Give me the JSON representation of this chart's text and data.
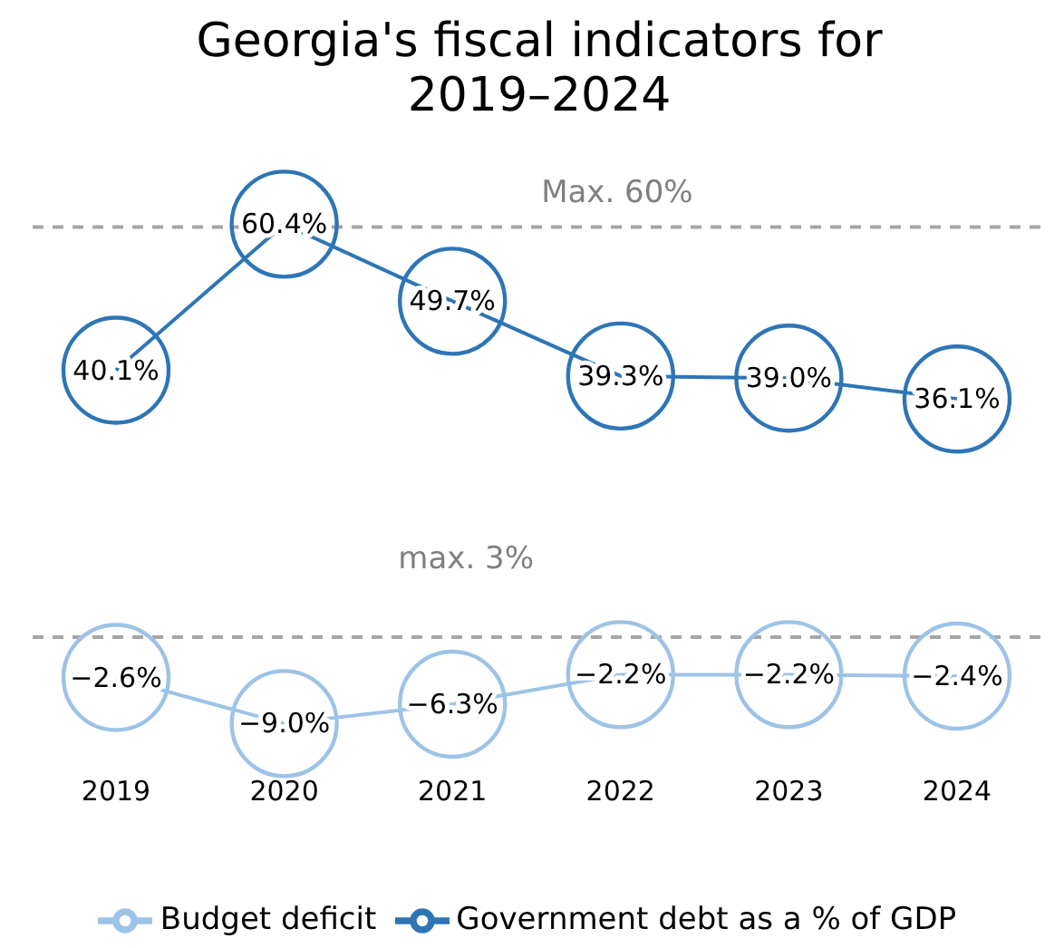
{
  "chart_data": {
    "type": "line",
    "title": "Georgia's fiscal indicators for\n2019–2024",
    "categories": [
      "2019",
      "2020",
      "2021",
      "2022",
      "2023",
      "2024"
    ],
    "series": [
      {
        "name": "Government debt as a % of GDP",
        "color": "#2e75b6",
        "values": [
          40.1,
          60.4,
          49.7,
          39.3,
          39.0,
          36.1
        ],
        "value_labels": [
          "40.1%",
          "60.4%",
          "49.7%",
          "39.3%",
          "39.0%",
          "36.1%"
        ]
      },
      {
        "name": "Budget deficit",
        "color": "#9dc3e6",
        "values": [
          -2.6,
          -9.0,
          -6.3,
          -2.2,
          -2.2,
          -2.4
        ],
        "value_labels": [
          "−2.6%",
          "−9.0%",
          "−6.3%",
          "−2.2%",
          "−2.2%",
          "−2.4%"
        ]
      }
    ],
    "line_style": "solid",
    "grid": false,
    "legend": "bottom",
    "tick_labels": "x",
    "ref_lines": [
      {
        "axis": "y",
        "value": 60,
        "label": "Max. 60%",
        "color": "#a6a6a6",
        "line_style": "dashed"
      },
      {
        "axis": "y",
        "value": 3,
        "label": "max. 3%",
        "color": "#a6a6a6",
        "line_style": "dashed"
      }
    ]
  }
}
